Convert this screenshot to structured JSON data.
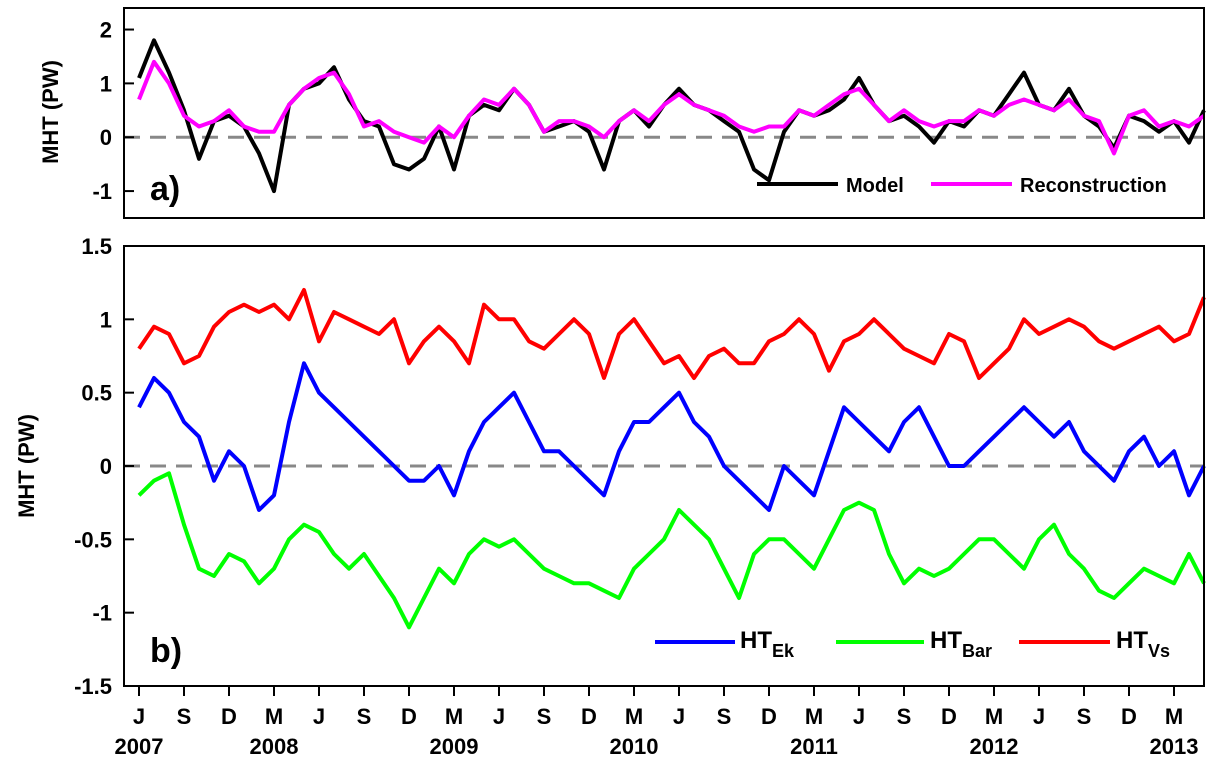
{
  "chart_data": [
    {
      "type": "line",
      "panel_label": "a)",
      "ylabel": "MHT (PW)",
      "ylim": [
        -1.5,
        2.4
      ],
      "yticks": [
        -1,
        0,
        1,
        2
      ],
      "zero_line": "dashed gray",
      "legend_placement": "bottom-right",
      "series": [
        {
          "name": "Model",
          "color": "#000000",
          "key": "model",
          "x": [
            "2007-06",
            "2007-07",
            "2007-08",
            "2007-09",
            "2007-10",
            "2007-11",
            "2007-12",
            "2008-01",
            "2008-02",
            "2008-03",
            "2008-04",
            "2008-05",
            "2008-06",
            "2008-07",
            "2008-08",
            "2008-09",
            "2008-10",
            "2008-11",
            "2008-12",
            "2009-01",
            "2009-02",
            "2009-03",
            "2009-04",
            "2009-05",
            "2009-06",
            "2009-07",
            "2009-08",
            "2009-09",
            "2009-10",
            "2009-11",
            "2009-12",
            "2010-01",
            "2010-02",
            "2010-03",
            "2010-04",
            "2010-05",
            "2010-06",
            "2010-07",
            "2010-08",
            "2010-09",
            "2010-10",
            "2010-11",
            "2010-12",
            "2011-01",
            "2011-02",
            "2011-03",
            "2011-04",
            "2011-05",
            "2011-06",
            "2011-07",
            "2011-08",
            "2011-09",
            "2011-10",
            "2011-11",
            "2011-12",
            "2012-01",
            "2012-02",
            "2012-03",
            "2012-04",
            "2012-05",
            "2012-06",
            "2012-07",
            "2012-08",
            "2012-09",
            "2012-10",
            "2012-11",
            "2012-12",
            "2013-01",
            "2013-02",
            "2013-03",
            "2013-04",
            "2013-05"
          ],
          "values": [
            1.1,
            1.8,
            1.2,
            0.5,
            -0.4,
            0.3,
            0.4,
            0.2,
            -0.3,
            -1.0,
            0.6,
            0.9,
            1.0,
            1.3,
            0.7,
            0.3,
            0.2,
            -0.5,
            -0.6,
            -0.4,
            0.2,
            -0.6,
            0.4,
            0.6,
            0.5,
            0.9,
            0.6,
            0.1,
            0.2,
            0.3,
            0.1,
            -0.6,
            0.3,
            0.5,
            0.2,
            0.6,
            0.9,
            0.6,
            0.5,
            0.3,
            0.1,
            -0.6,
            -0.8,
            0.1,
            0.5,
            0.4,
            0.5,
            0.7,
            1.1,
            0.6,
            0.3,
            0.4,
            0.2,
            -0.1,
            0.3,
            0.2,
            0.5,
            0.4,
            0.8,
            1.2,
            0.6,
            0.5,
            0.9,
            0.4,
            0.2,
            -0.2,
            0.4,
            0.3,
            0.1,
            0.3,
            -0.1,
            0.5
          ]
        },
        {
          "name": "Reconstruction",
          "color": "#ff00ff",
          "key": "recon",
          "x": [
            "2007-06",
            "2007-07",
            "2007-08",
            "2007-09",
            "2007-10",
            "2007-11",
            "2007-12",
            "2008-01",
            "2008-02",
            "2008-03",
            "2008-04",
            "2008-05",
            "2008-06",
            "2008-07",
            "2008-08",
            "2008-09",
            "2008-10",
            "2008-11",
            "2008-12",
            "2009-01",
            "2009-02",
            "2009-03",
            "2009-04",
            "2009-05",
            "2009-06",
            "2009-07",
            "2009-08",
            "2009-09",
            "2009-10",
            "2009-11",
            "2009-12",
            "2010-01",
            "2010-02",
            "2010-03",
            "2010-04",
            "2010-05",
            "2010-06",
            "2010-07",
            "2010-08",
            "2010-09",
            "2010-10",
            "2010-11",
            "2010-12",
            "2011-01",
            "2011-02",
            "2011-03",
            "2011-04",
            "2011-05",
            "2011-06",
            "2011-07",
            "2011-08",
            "2011-09",
            "2011-10",
            "2011-11",
            "2011-12",
            "2012-01",
            "2012-02",
            "2012-03",
            "2012-04",
            "2012-05",
            "2012-06",
            "2012-07",
            "2012-08",
            "2012-09",
            "2012-10",
            "2012-11",
            "2012-12",
            "2013-01",
            "2013-02",
            "2013-03",
            "2013-04",
            "2013-05"
          ],
          "values": [
            0.7,
            1.4,
            1.0,
            0.4,
            0.2,
            0.3,
            0.5,
            0.2,
            0.1,
            0.1,
            0.6,
            0.9,
            1.1,
            1.2,
            0.8,
            0.2,
            0.3,
            0.1,
            0.0,
            -0.1,
            0.2,
            0.0,
            0.4,
            0.7,
            0.6,
            0.9,
            0.6,
            0.1,
            0.3,
            0.3,
            0.2,
            0.0,
            0.3,
            0.5,
            0.3,
            0.6,
            0.8,
            0.6,
            0.5,
            0.4,
            0.2,
            0.1,
            0.2,
            0.2,
            0.5,
            0.4,
            0.6,
            0.8,
            0.9,
            0.6,
            0.3,
            0.5,
            0.3,
            0.2,
            0.3,
            0.3,
            0.5,
            0.4,
            0.6,
            0.7,
            0.6,
            0.5,
            0.7,
            0.4,
            0.3,
            -0.3,
            0.4,
            0.5,
            0.2,
            0.3,
            0.2,
            0.4
          ]
        }
      ]
    },
    {
      "type": "line",
      "panel_label": "b)",
      "ylabel": "MHT (PW)",
      "ylim": [
        -1.5,
        1.5
      ],
      "yticks": [
        -1.5,
        -1,
        -0.5,
        0,
        0.5,
        1,
        1.5
      ],
      "zero_line": "dashed gray",
      "legend_placement": "bottom-right",
      "series": [
        {
          "name_main": "HT",
          "name_sub": "Ek",
          "color": "#0000ff",
          "key": "ek",
          "x": [
            "2007-06",
            "2007-07",
            "2007-08",
            "2007-09",
            "2007-10",
            "2007-11",
            "2007-12",
            "2008-01",
            "2008-02",
            "2008-03",
            "2008-04",
            "2008-05",
            "2008-06",
            "2008-07",
            "2008-08",
            "2008-09",
            "2008-10",
            "2008-11",
            "2008-12",
            "2009-01",
            "2009-02",
            "2009-03",
            "2009-04",
            "2009-05",
            "2009-06",
            "2009-07",
            "2009-08",
            "2009-09",
            "2009-10",
            "2009-11",
            "2009-12",
            "2010-01",
            "2010-02",
            "2010-03",
            "2010-04",
            "2010-05",
            "2010-06",
            "2010-07",
            "2010-08",
            "2010-09",
            "2010-10",
            "2010-11",
            "2010-12",
            "2011-01",
            "2011-02",
            "2011-03",
            "2011-04",
            "2011-05",
            "2011-06",
            "2011-07",
            "2011-08",
            "2011-09",
            "2011-10",
            "2011-11",
            "2011-12",
            "2012-01",
            "2012-02",
            "2012-03",
            "2012-04",
            "2012-05",
            "2012-06",
            "2012-07",
            "2012-08",
            "2012-09",
            "2012-10",
            "2012-11",
            "2012-12",
            "2013-01",
            "2013-02",
            "2013-03",
            "2013-04",
            "2013-05"
          ],
          "values": [
            0.4,
            0.6,
            0.5,
            0.3,
            0.2,
            -0.1,
            0.1,
            0.0,
            -0.3,
            -0.2,
            0.3,
            0.7,
            0.5,
            0.4,
            0.3,
            0.2,
            0.1,
            0.0,
            -0.1,
            -0.1,
            0.0,
            -0.2,
            0.1,
            0.3,
            0.4,
            0.5,
            0.3,
            0.1,
            0.1,
            0.0,
            -0.1,
            -0.2,
            0.1,
            0.3,
            0.3,
            0.4,
            0.5,
            0.3,
            0.2,
            0.0,
            -0.1,
            -0.2,
            -0.3,
            0.0,
            -0.1,
            -0.2,
            0.1,
            0.4,
            0.3,
            0.2,
            0.1,
            0.3,
            0.4,
            0.2,
            0.0,
            0.0,
            0.1,
            0.2,
            0.3,
            0.4,
            0.3,
            0.2,
            0.3,
            0.1,
            0.0,
            -0.1,
            0.1,
            0.2,
            0.0,
            0.1,
            -0.2,
            0.0
          ]
        },
        {
          "name_main": "HT",
          "name_sub": "Bar",
          "color": "#00ff00",
          "key": "bar",
          "x": [
            "2007-06",
            "2007-07",
            "2007-08",
            "2007-09",
            "2007-10",
            "2007-11",
            "2007-12",
            "2008-01",
            "2008-02",
            "2008-03",
            "2008-04",
            "2008-05",
            "2008-06",
            "2008-07",
            "2008-08",
            "2008-09",
            "2008-10",
            "2008-11",
            "2008-12",
            "2009-01",
            "2009-02",
            "2009-03",
            "2009-04",
            "2009-05",
            "2009-06",
            "2009-07",
            "2009-08",
            "2009-09",
            "2009-10",
            "2009-11",
            "2009-12",
            "2010-01",
            "2010-02",
            "2010-03",
            "2010-04",
            "2010-05",
            "2010-06",
            "2010-07",
            "2010-08",
            "2010-09",
            "2010-10",
            "2010-11",
            "2010-12",
            "2011-01",
            "2011-02",
            "2011-03",
            "2011-04",
            "2011-05",
            "2011-06",
            "2011-07",
            "2011-08",
            "2011-09",
            "2011-10",
            "2011-11",
            "2011-12",
            "2012-01",
            "2012-02",
            "2012-03",
            "2012-04",
            "2012-05",
            "2012-06",
            "2012-07",
            "2012-08",
            "2012-09",
            "2012-10",
            "2012-11",
            "2012-12",
            "2013-01",
            "2013-02",
            "2013-03",
            "2013-04",
            "2013-05"
          ],
          "values": [
            -0.2,
            -0.1,
            -0.05,
            -0.4,
            -0.7,
            -0.75,
            -0.6,
            -0.65,
            -0.8,
            -0.7,
            -0.5,
            -0.4,
            -0.45,
            -0.6,
            -0.7,
            -0.6,
            -0.75,
            -0.9,
            -1.1,
            -0.9,
            -0.7,
            -0.8,
            -0.6,
            -0.5,
            -0.55,
            -0.5,
            -0.6,
            -0.7,
            -0.75,
            -0.8,
            -0.8,
            -0.85,
            -0.9,
            -0.7,
            -0.6,
            -0.5,
            -0.3,
            -0.4,
            -0.5,
            -0.7,
            -0.9,
            -0.6,
            -0.5,
            -0.5,
            -0.6,
            -0.7,
            -0.5,
            -0.3,
            -0.25,
            -0.3,
            -0.6,
            -0.8,
            -0.7,
            -0.75,
            -0.7,
            -0.6,
            -0.5,
            -0.5,
            -0.6,
            -0.7,
            -0.5,
            -0.4,
            -0.6,
            -0.7,
            -0.85,
            -0.9,
            -0.8,
            -0.7,
            -0.75,
            -0.8,
            -0.6,
            -0.8
          ]
        },
        {
          "name_main": "HT",
          "name_sub": "Vs",
          "color": "#ff0000",
          "key": "vs",
          "x": [
            "2007-06",
            "2007-07",
            "2007-08",
            "2007-09",
            "2007-10",
            "2007-11",
            "2007-12",
            "2008-01",
            "2008-02",
            "2008-03",
            "2008-04",
            "2008-05",
            "2008-06",
            "2008-07",
            "2008-08",
            "2008-09",
            "2008-10",
            "2008-11",
            "2008-12",
            "2009-01",
            "2009-02",
            "2009-03",
            "2009-04",
            "2009-05",
            "2009-06",
            "2009-07",
            "2009-08",
            "2009-09",
            "2009-10",
            "2009-11",
            "2009-12",
            "2010-01",
            "2010-02",
            "2010-03",
            "2010-04",
            "2010-05",
            "2010-06",
            "2010-07",
            "2010-08",
            "2010-09",
            "2010-10",
            "2010-11",
            "2010-12",
            "2011-01",
            "2011-02",
            "2011-03",
            "2011-04",
            "2011-05",
            "2011-06",
            "2011-07",
            "2011-08",
            "2011-09",
            "2011-10",
            "2011-11",
            "2011-12",
            "2012-01",
            "2012-02",
            "2012-03",
            "2012-04",
            "2012-05",
            "2012-06",
            "2012-07",
            "2012-08",
            "2012-09",
            "2012-10",
            "2012-11",
            "2012-12",
            "2013-01",
            "2013-02",
            "2013-03",
            "2013-04",
            "2013-05"
          ],
          "values": [
            0.8,
            0.95,
            0.9,
            0.7,
            0.75,
            0.95,
            1.05,
            1.1,
            1.05,
            1.1,
            1.0,
            1.2,
            0.85,
            1.05,
            1.0,
            0.95,
            0.9,
            1.0,
            0.7,
            0.85,
            0.95,
            0.85,
            0.7,
            1.1,
            1.0,
            1.0,
            0.85,
            0.8,
            0.9,
            1.0,
            0.9,
            0.6,
            0.9,
            1.0,
            0.85,
            0.7,
            0.75,
            0.6,
            0.75,
            0.8,
            0.7,
            0.7,
            0.85,
            0.9,
            1.0,
            0.9,
            0.65,
            0.85,
            0.9,
            1.0,
            0.9,
            0.8,
            0.75,
            0.7,
            0.9,
            0.85,
            0.6,
            0.7,
            0.8,
            1.0,
            0.9,
            0.95,
            1.0,
            0.95,
            0.85,
            0.8,
            0.85,
            0.9,
            0.95,
            0.85,
            0.9,
            1.15
          ]
        }
      ]
    }
  ],
  "x_axis": {
    "month_ticks": [
      {
        "date": "2007-06",
        "label": "J"
      },
      {
        "date": "2007-09",
        "label": "S"
      },
      {
        "date": "2007-12",
        "label": "D"
      },
      {
        "date": "2008-03",
        "label": "M"
      },
      {
        "date": "2008-06",
        "label": "J"
      },
      {
        "date": "2008-09",
        "label": "S"
      },
      {
        "date": "2008-12",
        "label": "D"
      },
      {
        "date": "2009-03",
        "label": "M"
      },
      {
        "date": "2009-06",
        "label": "J"
      },
      {
        "date": "2009-09",
        "label": "S"
      },
      {
        "date": "2009-12",
        "label": "D"
      },
      {
        "date": "2010-03",
        "label": "M"
      },
      {
        "date": "2010-06",
        "label": "J"
      },
      {
        "date": "2010-09",
        "label": "S"
      },
      {
        "date": "2010-12",
        "label": "D"
      },
      {
        "date": "2011-03",
        "label": "M"
      },
      {
        "date": "2011-06",
        "label": "J"
      },
      {
        "date": "2011-09",
        "label": "S"
      },
      {
        "date": "2011-12",
        "label": "D"
      },
      {
        "date": "2012-03",
        "label": "M"
      },
      {
        "date": "2012-06",
        "label": "J"
      },
      {
        "date": "2012-09",
        "label": "S"
      },
      {
        "date": "2012-12",
        "label": "D"
      },
      {
        "date": "2013-03",
        "label": "M"
      }
    ],
    "year_labels": [
      {
        "date": "2007-06",
        "label": "2007"
      },
      {
        "date": "2008-03",
        "label": "2008"
      },
      {
        "date": "2009-03",
        "label": "2009"
      },
      {
        "date": "2010-03",
        "label": "2010"
      },
      {
        "date": "2011-03",
        "label": "2011"
      },
      {
        "date": "2012-03",
        "label": "2012"
      },
      {
        "date": "2013-03",
        "label": "2013"
      }
    ],
    "xlim": [
      "2007-05",
      "2013-05"
    ]
  },
  "legend_a": {
    "model": "Model",
    "recon": "Reconstruction"
  }
}
